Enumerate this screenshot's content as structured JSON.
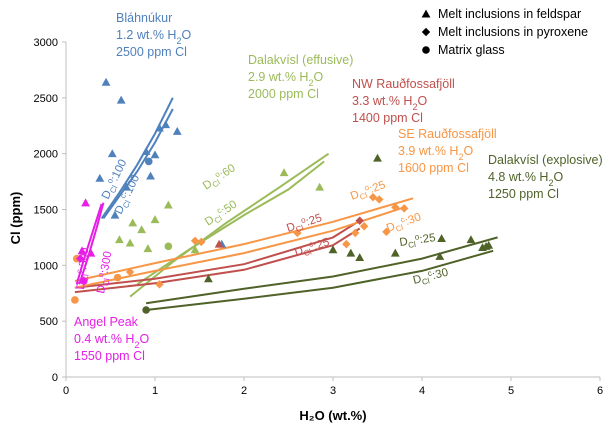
{
  "chart_data": {
    "type": "scatter",
    "xlabel": "H₂O (wt.%)",
    "ylabel": "Cl (ppm)",
    "xlim": [
      0,
      6
    ],
    "ylim": [
      0,
      3000
    ],
    "xticks": [
      0,
      1,
      2,
      3,
      4,
      5,
      6
    ],
    "yticks": [
      0,
      500,
      1000,
      1500,
      2000,
      2500,
      3000
    ],
    "grid": false,
    "legend": {
      "position": "top-right",
      "items": [
        {
          "marker": "triangle",
          "label": "Melt inclusions in feldspar"
        },
        {
          "marker": "diamond",
          "label": "Melt inclusions in pyroxene"
        },
        {
          "marker": "circle",
          "label": "Matrix glass"
        }
      ]
    },
    "groups": [
      {
        "color": "#4f81bd",
        "label": [
          "Bláhnúkur",
          "1.2 wt.% H₂O",
          "2500 ppm Cl"
        ],
        "points": [
          {
            "m": "triangle",
            "x": 0.38,
            "y": 1780
          },
          {
            "m": "triangle",
            "x": 0.45,
            "y": 2640
          },
          {
            "m": "triangle",
            "x": 0.62,
            "y": 2480
          },
          {
            "m": "triangle",
            "x": 0.52,
            "y": 2000
          },
          {
            "m": "triangle",
            "x": 0.68,
            "y": 1700
          },
          {
            "m": "triangle",
            "x": 0.9,
            "y": 2020
          },
          {
            "m": "triangle",
            "x": 1.05,
            "y": 2230
          },
          {
            "m": "triangle",
            "x": 1.12,
            "y": 2260
          },
          {
            "m": "triangle",
            "x": 1.25,
            "y": 2200
          },
          {
            "m": "triangle",
            "x": 1.0,
            "y": 1990
          },
          {
            "m": "triangle",
            "x": 0.95,
            "y": 1800
          },
          {
            "m": "triangle",
            "x": 0.55,
            "y": 1450
          },
          {
            "m": "triangle",
            "x": 1.75,
            "y": 1190
          },
          {
            "m": "circle",
            "x": 0.93,
            "y": 1930
          }
        ],
        "lines": [
          {
            "x": [
              0.4,
              0.6,
              0.8,
              1.0,
              1.2
            ],
            "y": [
              1420,
              1650,
              1900,
              2180,
              2500
            ]
          },
          {
            "x": [
              0.42,
              0.6,
              0.8,
              1.0,
              1.2
            ],
            "y": [
              1420,
              1620,
              1840,
              2100,
              2400
            ]
          }
        ],
        "curve_labels": [
          "D$_{Cl}$$^{o}$:100",
          "D$_{Cl}$$^{c}$:100"
        ]
      },
      {
        "color": "#9bbb59",
        "label": [
          "Dalakvísl (effusive)",
          "2.9 wt.% H₂O",
          "2000 ppm Cl"
        ],
        "points": [
          {
            "m": "triangle",
            "x": 0.6,
            "y": 1230
          },
          {
            "m": "triangle",
            "x": 0.72,
            "y": 1200
          },
          {
            "m": "triangle",
            "x": 0.75,
            "y": 1380
          },
          {
            "m": "triangle",
            "x": 0.85,
            "y": 1320
          },
          {
            "m": "triangle",
            "x": 0.92,
            "y": 1150
          },
          {
            "m": "triangle",
            "x": 1.0,
            "y": 1410
          },
          {
            "m": "triangle",
            "x": 1.15,
            "y": 1540
          },
          {
            "m": "triangle",
            "x": 1.45,
            "y": 1140
          },
          {
            "m": "triangle",
            "x": 2.45,
            "y": 1830
          },
          {
            "m": "triangle",
            "x": 2.85,
            "y": 1700
          },
          {
            "m": "circle",
            "x": 1.15,
            "y": 1170
          }
        ],
        "lines": [
          {
            "x": [
              0.72,
              1.2,
              1.8,
              2.4,
              2.95
            ],
            "y": [
              720,
              1030,
              1380,
              1700,
              2000
            ]
          },
          {
            "x": [
              0.8,
              1.4,
              2.0,
              2.5,
              2.9
            ],
            "y": [
              830,
              1150,
              1450,
              1680,
              1930
            ]
          }
        ],
        "curve_labels": [
          "D$_{Cl}$$^{o}$:60",
          "D$_{Cl}$$^{c}$:50"
        ]
      },
      {
        "color": "#c0504d",
        "label": [
          "NW Rauðfossafjöll",
          "3.3 wt.% H₂O",
          "1400 ppm Cl"
        ],
        "points": [
          {
            "m": "triangle",
            "x": 1.72,
            "y": 1190
          },
          {
            "m": "diamond",
            "x": 3.3,
            "y": 1400
          }
        ],
        "lines": [
          {
            "x": [
              0.1,
              1.0,
              2.0,
              3.0,
              3.3
            ],
            "y": [
              800,
              880,
              1010,
              1250,
              1400
            ]
          },
          {
            "x": [
              0.1,
              1.0,
              2.0,
              3.0,
              3.3
            ],
            "y": [
              760,
              840,
              960,
              1180,
              1330
            ]
          }
        ],
        "curve_labels": [
          "D$_{Cl}$$^{o}$:25",
          "D$_{Cl}$$^{c}$:25"
        ]
      },
      {
        "color": "#f79646",
        "label": [
          "SE Rauðfossafjöll",
          "3.9 wt.% H₂O",
          "1600 ppm Cl"
        ],
        "points": [
          {
            "m": "diamond",
            "x": 0.72,
            "y": 940
          },
          {
            "m": "diamond",
            "x": 1.05,
            "y": 830
          },
          {
            "m": "diamond",
            "x": 1.45,
            "y": 1220
          },
          {
            "m": "diamond",
            "x": 1.52,
            "y": 1210
          },
          {
            "m": "diamond",
            "x": 2.6,
            "y": 1290
          },
          {
            "m": "diamond",
            "x": 3.15,
            "y": 1190
          },
          {
            "m": "diamond",
            "x": 3.25,
            "y": 1290
          },
          {
            "m": "diamond",
            "x": 3.35,
            "y": 1350
          },
          {
            "m": "diamond",
            "x": 3.45,
            "y": 1610
          },
          {
            "m": "diamond",
            "x": 3.52,
            "y": 1590
          },
          {
            "m": "diamond",
            "x": 3.7,
            "y": 1520
          },
          {
            "m": "diamond",
            "x": 3.8,
            "y": 1510
          },
          {
            "m": "diamond",
            "x": 3.6,
            "y": 1300
          },
          {
            "m": "circle",
            "x": 0.12,
            "y": 1060
          },
          {
            "m": "circle",
            "x": 0.58,
            "y": 890
          },
          {
            "m": "circle",
            "x": 0.1,
            "y": 690
          }
        ],
        "lines": [
          {
            "x": [
              0.1,
              1.0,
              2.0,
              3.0,
              3.9
            ],
            "y": [
              860,
              1020,
              1190,
              1390,
              1600
            ]
          },
          {
            "x": [
              0.1,
              1.0,
              2.0,
              3.0,
              3.8
            ],
            "y": [
              800,
              950,
              1110,
              1310,
              1520
            ]
          }
        ],
        "curve_labels": [
          "D$_{Cl}$$^{o}$:25",
          "D$_{Cl}$$^{c}$:30"
        ]
      },
      {
        "color": "#4f6228",
        "label": [
          "Dalakvísl (explosive)",
          "4.8 wt.% H₂O",
          "1250 ppm Cl"
        ],
        "points": [
          {
            "m": "triangle",
            "x": 1.6,
            "y": 880
          },
          {
            "m": "triangle",
            "x": 3.0,
            "y": 1140
          },
          {
            "m": "triangle",
            "x": 3.2,
            "y": 1110
          },
          {
            "m": "triangle",
            "x": 3.3,
            "y": 1070
          },
          {
            "m": "triangle",
            "x": 3.5,
            "y": 1960
          },
          {
            "m": "triangle",
            "x": 3.7,
            "y": 1110
          },
          {
            "m": "triangle",
            "x": 4.2,
            "y": 1080
          },
          {
            "m": "triangle",
            "x": 4.22,
            "y": 1240
          },
          {
            "m": "triangle",
            "x": 4.55,
            "y": 1230
          },
          {
            "m": "triangle",
            "x": 4.68,
            "y": 1160
          },
          {
            "m": "triangle",
            "x": 4.72,
            "y": 1170
          },
          {
            "m": "triangle",
            "x": 4.75,
            "y": 1180
          },
          {
            "m": "circle",
            "x": 0.9,
            "y": 600
          }
        ],
        "lines": [
          {
            "x": [
              0.9,
              2.0,
              3.0,
              4.0,
              4.85
            ],
            "y": [
              660,
              790,
              900,
              1060,
              1250
            ]
          },
          {
            "x": [
              0.9,
              2.0,
              3.0,
              4.0,
              4.8
            ],
            "y": [
              600,
              700,
              800,
              950,
              1130
            ]
          }
        ],
        "curve_labels": [
          "D$_{Cl}$$^{o}$:25",
          "D$_{Cl}$$^{c}$:30"
        ]
      },
      {
        "color": "#e61ee6",
        "label": [
          "Angel Peak",
          "0.4 wt.% H₂O",
          "1550 ppm Cl"
        ],
        "points": [
          {
            "m": "triangle",
            "x": 0.22,
            "y": 1560
          },
          {
            "m": "triangle",
            "x": 0.18,
            "y": 1130
          },
          {
            "m": "triangle",
            "x": 0.28,
            "y": 1110
          },
          {
            "m": "diamond",
            "x": 0.16,
            "y": 1060
          },
          {
            "m": "circle",
            "x": 0.2,
            "y": 860
          }
        ],
        "lines": [
          {
            "x": [
              0.12,
              0.2,
              0.3,
              0.4
            ],
            "y": [
              830,
              1050,
              1300,
              1550
            ]
          },
          {
            "x": [
              0.15,
              0.25,
              0.35,
              0.42
            ],
            "y": [
              830,
              1080,
              1350,
              1560
            ]
          }
        ],
        "curve_labels": [
          "D$_{Cl}$$^{c}$:300",
          "D$_{Cl}$$^{o}$:300"
        ]
      }
    ]
  }
}
